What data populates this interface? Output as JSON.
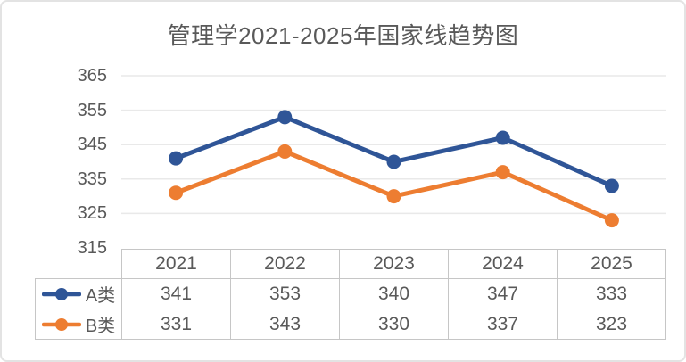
{
  "card": {
    "background": "#ffffff",
    "border_color": "#e3e3e3"
  },
  "chart_data": {
    "type": "line",
    "title": "管理学2021-2025年国家线趋势图",
    "categories": [
      "2021",
      "2022",
      "2023",
      "2024",
      "2025"
    ],
    "series": [
      {
        "name": "A类",
        "values": [
          341,
          353,
          340,
          347,
          333
        ],
        "color": "#2F5597"
      },
      {
        "name": "B类",
        "values": [
          331,
          343,
          330,
          337,
          323
        ],
        "color": "#ED7D31"
      }
    ],
    "xlabel": "",
    "ylabel": "",
    "ylim": [
      315,
      365
    ],
    "ytick_step": 10,
    "yticks": [
      365,
      355,
      345,
      335,
      325,
      315
    ],
    "grid": true,
    "gridline_color": "#e9e9e9",
    "text_color": "#595959",
    "table_border_color": "#c6c6c6",
    "legend_position": "data-table-left",
    "marker": "circle"
  }
}
